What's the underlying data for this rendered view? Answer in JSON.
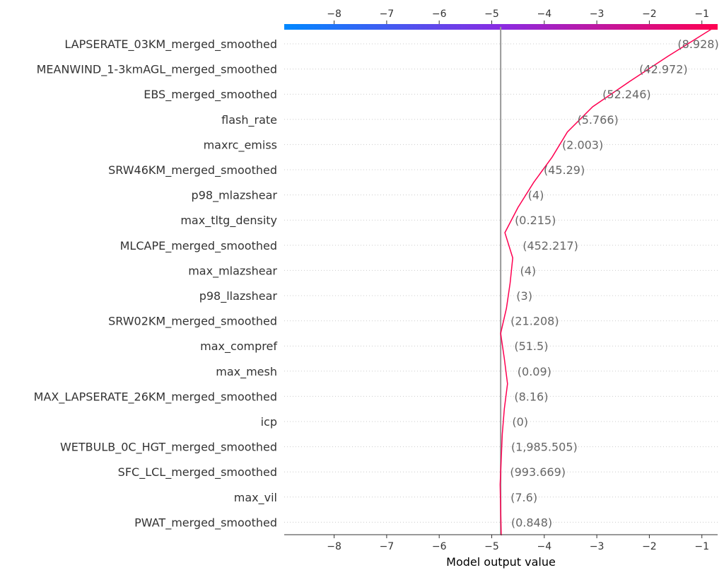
{
  "chart_data": {
    "type": "line",
    "subtype": "decision-plot",
    "xlabel": "Model output value",
    "xlim": [
      -8.95,
      -0.7
    ],
    "xticks": [
      -8,
      -7,
      -6,
      -5,
      -4,
      -3,
      -2,
      -1
    ],
    "base_value": -4.83,
    "grid": "horizontal dashed row lines",
    "colorbar": {
      "position": "top",
      "low_color": "#0088ff",
      "mid_color": "#8a2be2",
      "high_color": "#ff0051"
    },
    "line_color": "#ff0051",
    "features": [
      {
        "name": "LAPSERATE_03KM_merged_smoothed",
        "value_label": "(8.928)",
        "cum_value": -1.65
      },
      {
        "name": "MEANWIND_1-3kmAGL_merged_smoothed",
        "value_label": "(42.972)",
        "cum_value": -2.38
      },
      {
        "name": "EBS_merged_smoothed",
        "value_label": "(52.246)",
        "cum_value": -3.08
      },
      {
        "name": "flash_rate",
        "value_label": "(5.766)",
        "cum_value": -3.56
      },
      {
        "name": "maxrc_emiss",
        "value_label": "(2.003)",
        "cum_value": -3.85
      },
      {
        "name": "SRW46KM_merged_smoothed",
        "value_label": "(45.29)",
        "cum_value": -4.2
      },
      {
        "name": "p98_mlazshear",
        "value_label": "(4)",
        "cum_value": -4.5
      },
      {
        "name": "max_tltg_density",
        "value_label": "(0.215)",
        "cum_value": -4.75
      },
      {
        "name": "MLCAPE_merged_smoothed",
        "value_label": "(452.217)",
        "cum_value": -4.6
      },
      {
        "name": "max_mlazshear",
        "value_label": "(4)",
        "cum_value": -4.65
      },
      {
        "name": "p98_llazshear",
        "value_label": "(3)",
        "cum_value": -4.72
      },
      {
        "name": "SRW02KM_merged_smoothed",
        "value_label": "(21.208)",
        "cum_value": -4.83
      },
      {
        "name": "max_compref",
        "value_label": "(51.5)",
        "cum_value": -4.76
      },
      {
        "name": "max_mesh",
        "value_label": "(0.09)",
        "cum_value": -4.7
      },
      {
        "name": "MAX_LAPSERATE_26KM_merged_smoothed",
        "value_label": "(8.16)",
        "cum_value": -4.76
      },
      {
        "name": "icp",
        "value_label": "(0)",
        "cum_value": -4.8
      },
      {
        "name": "WETBULB_0C_HGT_merged_smoothed",
        "value_label": "(1,985.505)",
        "cum_value": -4.82
      },
      {
        "name": "SFC_LCL_merged_smoothed",
        "value_label": "(993.669)",
        "cum_value": -4.84
      },
      {
        "name": "max_vil",
        "value_label": "(7.6)",
        "cum_value": -4.83
      },
      {
        "name": "PWAT_merged_smoothed",
        "value_label": "(0.848)",
        "cum_value": -4.82
      }
    ],
    "final_value": -0.75
  }
}
